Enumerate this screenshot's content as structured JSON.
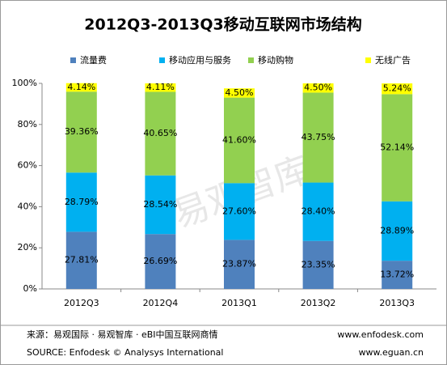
{
  "chart_data": {
    "type": "stacked_bar",
    "title": "2012Q3-2013Q3移动互联网市场结构",
    "categories": [
      "2012Q3",
      "2012Q4",
      "2013Q1",
      "2013Q2",
      "2013Q3"
    ],
    "series": [
      {
        "name": "流量费",
        "color": "#4f81bd",
        "values": [
          27.81,
          26.69,
          23.87,
          23.35,
          13.72
        ],
        "value_labels": [
          "27.81%",
          "26.69%",
          "23.87%",
          "23.35%",
          "13.72%"
        ]
      },
      {
        "name": "移动应用与服务",
        "color": "#00b0f0",
        "values": [
          28.79,
          28.54,
          27.6,
          28.4,
          28.89
        ],
        "value_labels": [
          "28.79%",
          "28.54%",
          "27.60%",
          "28.40%",
          "28.89%"
        ]
      },
      {
        "name": "移动购物",
        "color": "#92d050",
        "values": [
          39.36,
          40.65,
          41.6,
          43.75,
          52.14
        ],
        "value_labels": [
          "39.36%",
          "40.65%",
          "41.60%",
          "43.75%",
          "52.14%"
        ]
      },
      {
        "name": "无线广告",
        "color": "#ffff00",
        "values": [
          4.14,
          4.11,
          4.5,
          4.5,
          5.24
        ],
        "value_labels": [
          "4.14%",
          "4.11%",
          "4.50%",
          "4.50%",
          "5.24%"
        ]
      }
    ],
    "ylim": [
      0,
      100
    ],
    "yticks": [
      {
        "value": 0,
        "label": "0%"
      },
      {
        "value": 20,
        "label": "20%"
      },
      {
        "value": 40,
        "label": "40%"
      },
      {
        "value": 60,
        "label": "60%"
      },
      {
        "value": 80,
        "label": "80%"
      },
      {
        "value": 100,
        "label": "100%"
      }
    ],
    "watermark": "易观智库",
    "source_cn": "来源：易观国际 · 易观智库 · eBI中国互联网商情",
    "source_en": "SOURCE: Enfodesk © Analysys International",
    "url_1": "www.enfodesk.com",
    "url_2": "www.eguan.cn"
  }
}
